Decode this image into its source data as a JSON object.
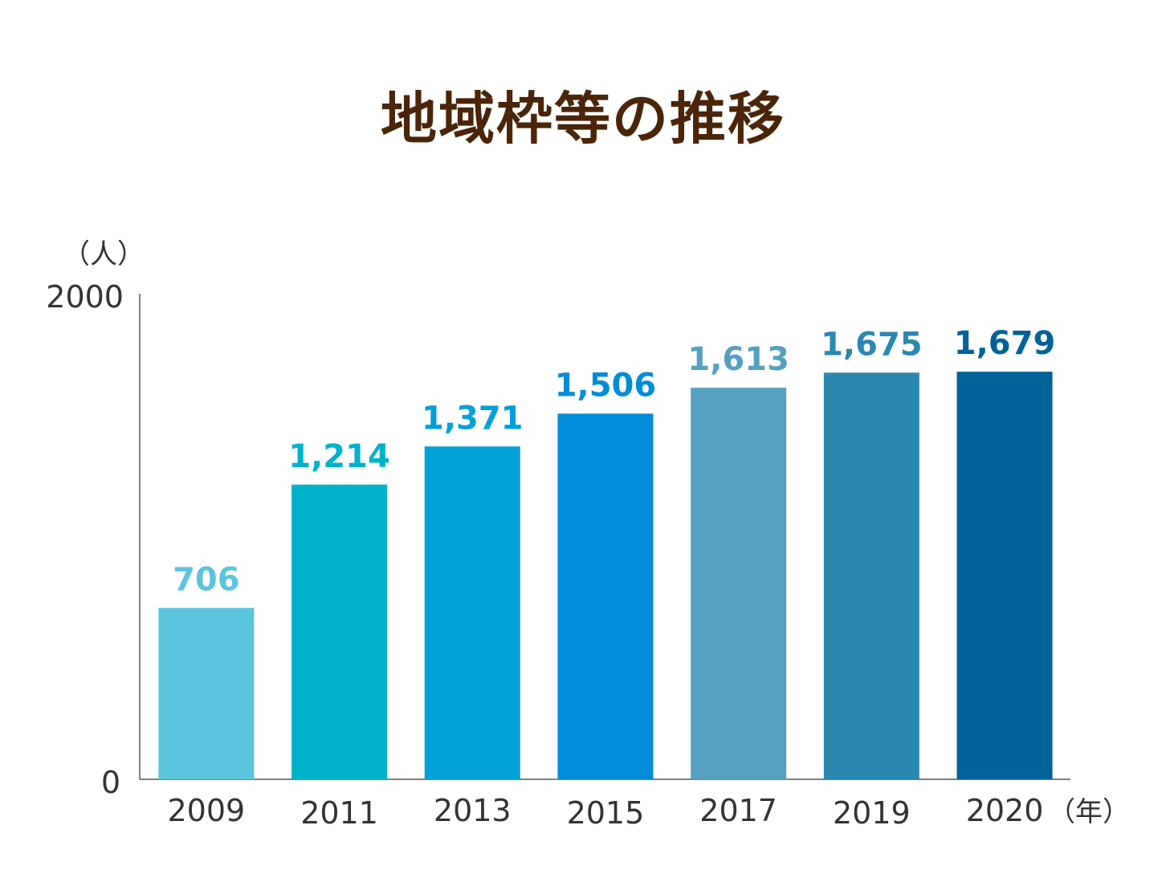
{
  "chart_data": {
    "type": "bar",
    "title": "地域枠等の推移",
    "ylabel": "（人）",
    "xlabel": "（年）",
    "ylim": [
      0,
      2000
    ],
    "y_ticks": [
      "0",
      "2000"
    ],
    "categories": [
      "2009",
      "2011",
      "2013",
      "2015",
      "2017",
      "2019",
      "2020"
    ],
    "values": [
      706,
      1214,
      1371,
      1506,
      1613,
      1675,
      1679
    ],
    "value_labels": [
      "706",
      "1,214",
      "1,371",
      "1,506",
      "1,613",
      "1,675",
      "1,679"
    ],
    "colors": [
      "#5bc5dd",
      "#00b2c9",
      "#00a0d8",
      "#008cd8",
      "#56a0bf",
      "#2b88b1",
      "#006298"
    ],
    "grid": false,
    "legend": "none"
  }
}
